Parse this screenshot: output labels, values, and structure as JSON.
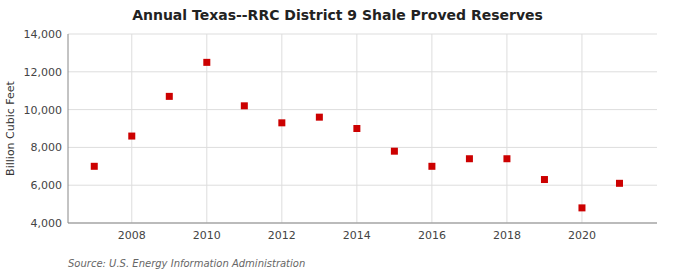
{
  "chart_data": {
    "type": "scatter",
    "title": "Annual Texas--RRC District 9 Shale Proved Reserves",
    "ylabel": "Billion Cubic Feet",
    "source": "Source: U.S. Energy Information Administration",
    "x": [
      2007,
      2008,
      2009,
      2010,
      2011,
      2012,
      2013,
      2014,
      2015,
      2016,
      2017,
      2018,
      2019,
      2020,
      2021
    ],
    "values": [
      7000,
      8600,
      10700,
      12500,
      10200,
      9300,
      9600,
      9000,
      7800,
      7000,
      7400,
      7400,
      6300,
      4800,
      6100
    ],
    "color": "#cc0000",
    "marker": "square",
    "xlim": [
      2006.3,
      2022.0
    ],
    "xticks": [
      2008,
      2010,
      2012,
      2014,
      2016,
      2018,
      2020
    ],
    "ylim": [
      4000,
      14000
    ],
    "yticks": [
      {
        "value": 4000,
        "label": "4,000"
      },
      {
        "value": 6000,
        "label": "6,000"
      },
      {
        "value": 8000,
        "label": "8,000"
      },
      {
        "value": 10000,
        "label": "10,000"
      },
      {
        "value": 12000,
        "label": "12,000"
      },
      {
        "value": 14000,
        "label": "14,000"
      }
    ],
    "grid": true
  }
}
